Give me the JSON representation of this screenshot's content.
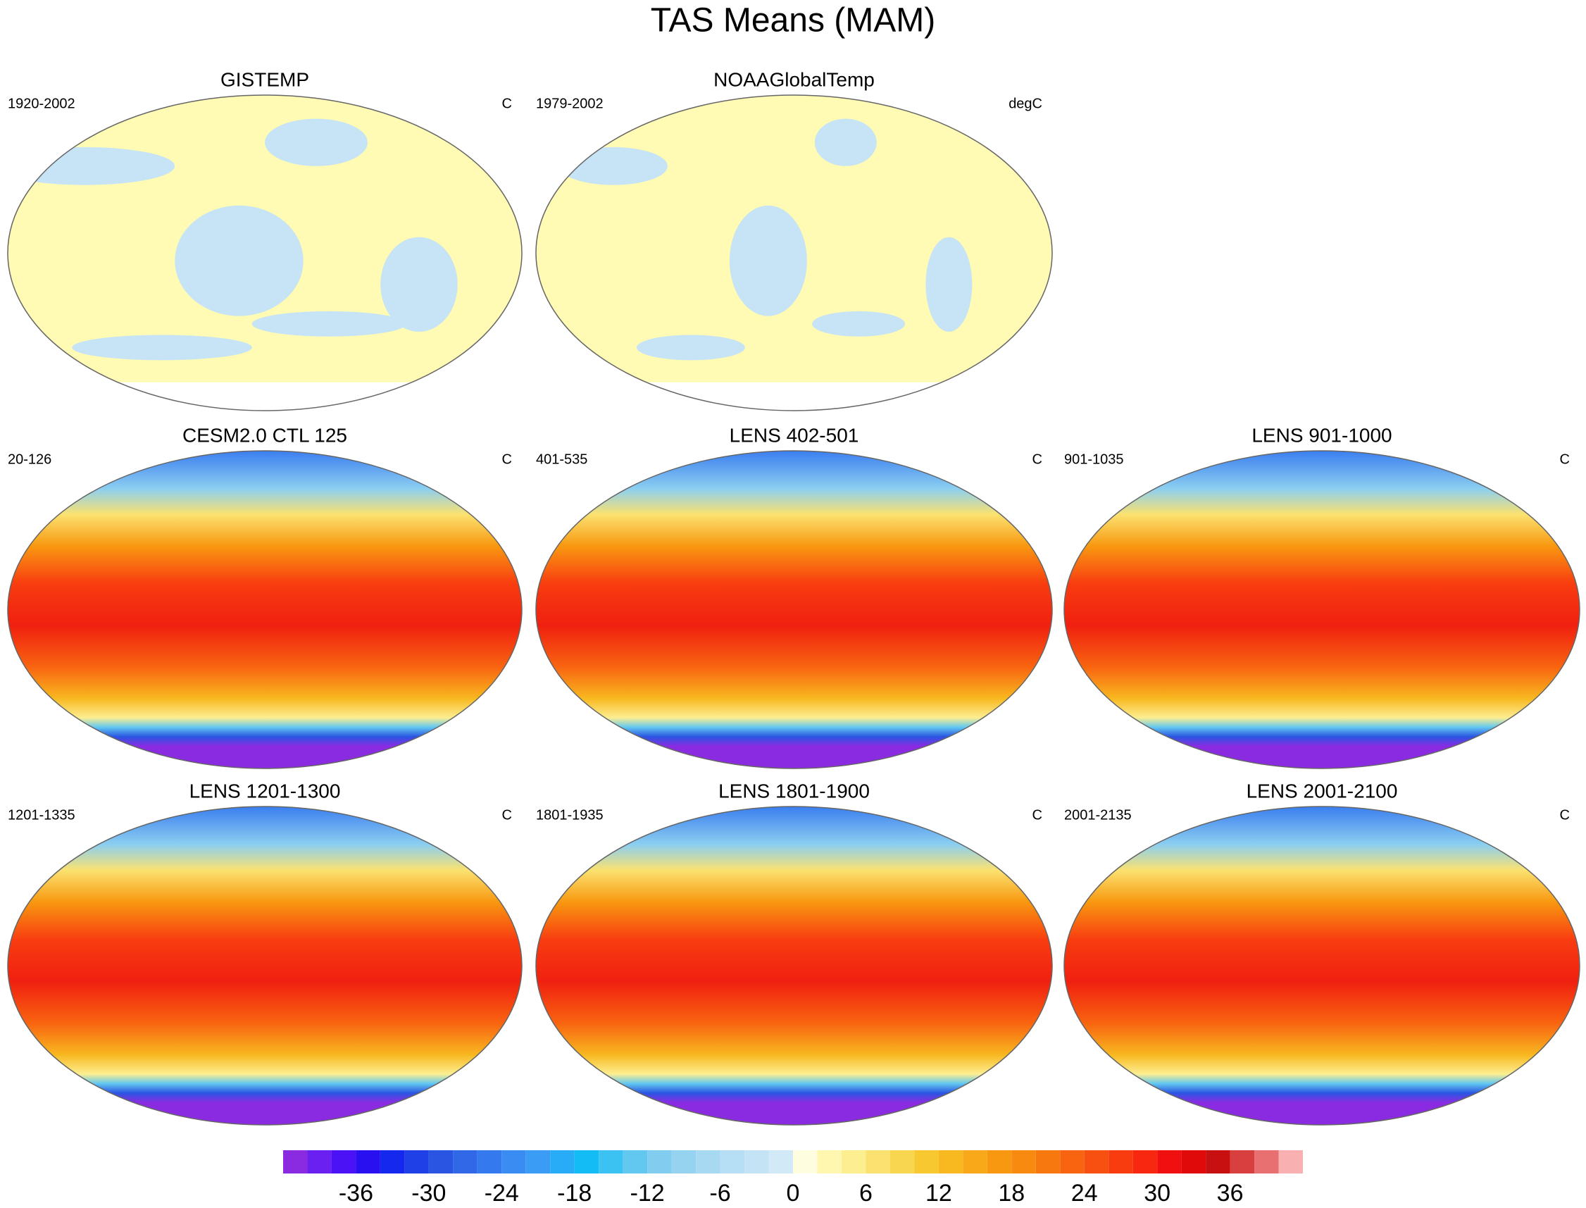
{
  "title": "TAS Means (MAM)",
  "panels": [
    {
      "title": "GISTEMP",
      "left": "1920-2002",
      "right": "C"
    },
    {
      "title": "NOAAGlobalTemp",
      "left": "1979-2002",
      "right": "degC"
    },
    {
      "title": "CESM2.0 CTL 125",
      "left": "20-126",
      "right": "C"
    },
    {
      "title": "LENS 402-501",
      "left": "401-535",
      "right": "C"
    },
    {
      "title": "LENS 901-1000",
      "left": "901-1035",
      "right": "C"
    },
    {
      "title": "LENS 1201-1300",
      "left": "1201-1335",
      "right": "C"
    },
    {
      "title": "LENS 1801-1900",
      "left": "1801-1935",
      "right": "C"
    },
    {
      "title": "LENS 2001-2100",
      "left": "2001-2135",
      "right": "C"
    }
  ],
  "colorbar": {
    "levels": [
      -40,
      -38,
      -36,
      -34,
      -32,
      -30,
      -28,
      -26,
      -24,
      -22,
      -20,
      -18,
      -16,
      -14,
      -12,
      -10,
      -8,
      -6,
      -4,
      -2,
      0,
      2,
      4,
      6,
      8,
      10,
      12,
      14,
      16,
      18,
      20,
      22,
      24,
      26,
      28,
      30,
      32,
      34,
      36,
      38,
      40
    ],
    "ticks": [
      -36,
      -30,
      -24,
      -18,
      -12,
      -6,
      0,
      6,
      12,
      18,
      24,
      30,
      36
    ],
    "colors": [
      "#8a2be2",
      "#6b20f2",
      "#4a12f5",
      "#2810f0",
      "#1428ee",
      "#1f40e6",
      "#2a55e2",
      "#3068e8",
      "#347aee",
      "#398cf2",
      "#3a9cf5",
      "#28acf8",
      "#14bcf5",
      "#3cc2f2",
      "#62c8f0",
      "#80cdf0",
      "#96d3f0",
      "#a8d9f2",
      "#b6def4",
      "#c4e4f6",
      "#d2eaf8",
      "#fffde0",
      "#fff6b0",
      "#fdee90",
      "#fbe270",
      "#f9d650",
      "#f8c830",
      "#f8b820",
      "#f8a818",
      "#f89810",
      "#f88a10",
      "#f87810",
      "#f86410",
      "#f85010",
      "#f83c10",
      "#f82810",
      "#f01010",
      "#e00a0a",
      "#c81010",
      "#d84040",
      "#e87070",
      "#f8b0b0"
    ]
  }
}
